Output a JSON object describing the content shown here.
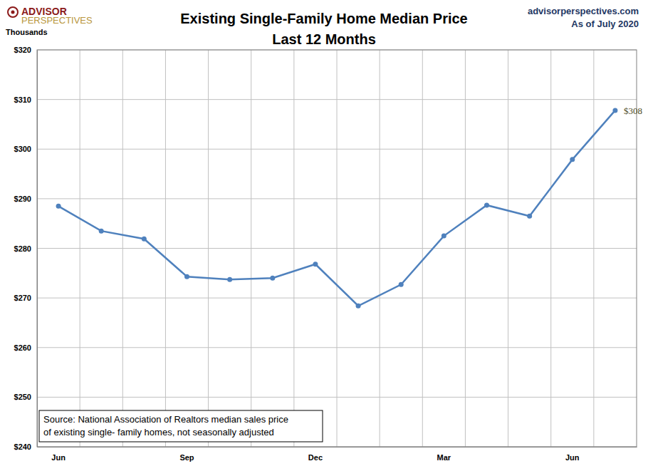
{
  "chart_data": {
    "type": "line",
    "title": "Existing Single-Family Home Median Price",
    "subtitle": "Last 12 Months",
    "y_label": "Thousands",
    "logo": [
      "ADVISOR",
      "PERSPECTIVES"
    ],
    "website": "advisorperspectives.com",
    "date_note": "As of July 2020",
    "source": [
      "Source: National Association of Realtors median sales price",
      "of existing single- family homes, not seasonally adjusted"
    ],
    "categories": [
      "Jun",
      null,
      null,
      "Sep",
      null,
      null,
      "Dec",
      null,
      null,
      "Mar",
      null,
      null,
      "Jun",
      null
    ],
    "values": [
      288.5,
      283.5,
      281.9,
      274.3,
      273.7,
      274.0,
      276.8,
      268.4,
      272.7,
      282.5,
      288.7,
      286.5,
      297.9,
      307.8
    ],
    "value_labels": [
      null,
      null,
      null,
      null,
      null,
      null,
      null,
      null,
      null,
      null,
      null,
      null,
      null,
      "$308"
    ],
    "color": "#4f81bd",
    "marker": "circle",
    "ylim": [
      240,
      320
    ],
    "yticks": [
      {
        "value": 240,
        "label": "$240"
      },
      {
        "value": 250,
        "label": "$250"
      },
      {
        "value": 260,
        "label": "$260"
      },
      {
        "value": 270,
        "label": "$270"
      },
      {
        "value": 280,
        "label": "$280"
      },
      {
        "value": 290,
        "label": "$290"
      },
      {
        "value": 300,
        "label": "$300"
      },
      {
        "value": 310,
        "label": "$310"
      },
      {
        "value": 320,
        "label": "$320"
      }
    ],
    "grid": true
  }
}
